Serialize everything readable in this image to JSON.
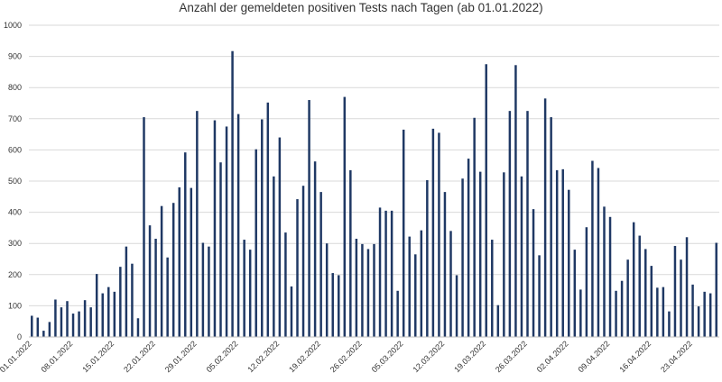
{
  "chart_data": {
    "type": "bar",
    "title": "Anzahl der gemeldeten positiven Tests nach Tagen (ab 01.01.2022)",
    "xlabel": "",
    "ylabel": "",
    "ylim": [
      0,
      1000
    ],
    "yticks": [
      0,
      100,
      200,
      300,
      400,
      500,
      600,
      700,
      800,
      900,
      1000
    ],
    "grid": true,
    "legend": "none",
    "bar_color": "#1f3864",
    "x_tick_labels": [
      {
        "index": 0,
        "label": "01.01.2022"
      },
      {
        "index": 7,
        "label": "08.01.2022"
      },
      {
        "index": 14,
        "label": "15.01.2022"
      },
      {
        "index": 21,
        "label": "22.01.2022"
      },
      {
        "index": 28,
        "label": "29.01.2022"
      },
      {
        "index": 35,
        "label": "05.02.2022"
      },
      {
        "index": 42,
        "label": "12.02.2022"
      },
      {
        "index": 49,
        "label": "19.02.2022"
      },
      {
        "index": 56,
        "label": "26.02.2022"
      },
      {
        "index": 63,
        "label": "05.03.2022"
      },
      {
        "index": 70,
        "label": "12.03.2022"
      },
      {
        "index": 77,
        "label": "19.03.2022"
      },
      {
        "index": 84,
        "label": "26.03.2022"
      },
      {
        "index": 91,
        "label": "02.04.2022"
      },
      {
        "index": 98,
        "label": "09.04.2022"
      },
      {
        "index": 105,
        "label": "16.04.2022"
      },
      {
        "index": 112,
        "label": "23.04.2022"
      }
    ],
    "values": [
      68,
      62,
      20,
      48,
      120,
      95,
      115,
      75,
      82,
      118,
      95,
      202,
      140,
      160,
      145,
      225,
      290,
      235,
      60,
      705,
      358,
      315,
      420,
      255,
      430,
      480,
      592,
      478,
      725,
      302,
      290,
      695,
      560,
      675,
      917,
      715,
      312,
      280,
      602,
      698,
      752,
      515,
      640,
      335,
      162,
      442,
      485,
      760,
      563,
      465,
      300,
      205,
      198,
      770,
      535,
      315,
      298,
      282,
      298,
      415,
      405,
      405,
      148,
      665,
      322,
      265,
      342,
      503,
      668,
      655,
      465,
      340,
      198,
      508,
      572,
      703,
      530,
      875,
      312,
      102,
      528,
      725,
      872,
      515,
      725,
      410,
      262,
      765,
      705,
      535,
      538,
      472,
      280,
      152,
      352,
      565,
      542,
      418,
      385,
      148,
      180,
      248,
      368,
      325,
      282,
      228,
      158,
      160,
      82,
      292,
      248,
      320,
      168,
      98,
      145,
      140,
      302
    ]
  }
}
